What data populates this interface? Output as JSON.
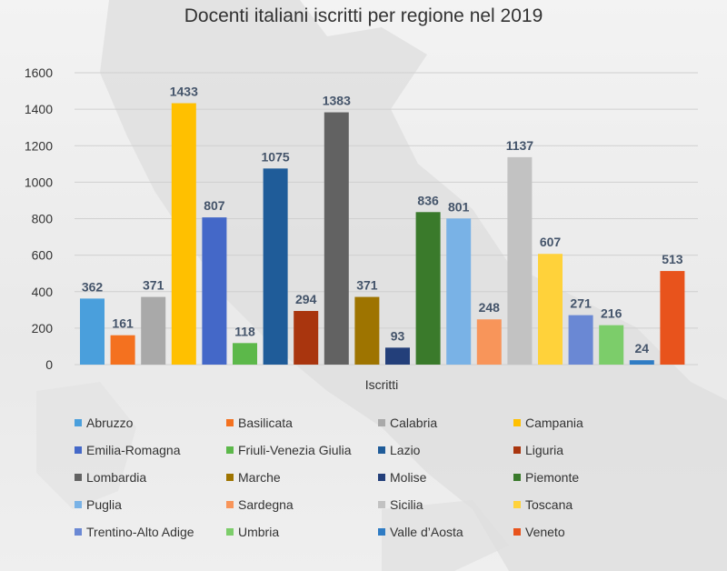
{
  "chart_data": {
    "type": "bar",
    "title": "Docenti italiani iscritti per regione nel 2019",
    "xlabel": "Iscritti",
    "ylabel": "",
    "ylim": [
      0,
      1600
    ],
    "yticks": [
      0,
      200,
      400,
      600,
      800,
      1000,
      1200,
      1400,
      1600
    ],
    "grid": true,
    "legend_position": "bottom",
    "series": [
      {
        "name": "Abruzzo",
        "value": 362,
        "color": "#4a9fdc"
      },
      {
        "name": "Basilicata",
        "value": 161,
        "color": "#f4711f"
      },
      {
        "name": "Calabria",
        "value": 371,
        "color": "#a9a9a9"
      },
      {
        "name": "Campania",
        "value": 1433,
        "color": "#ffc000"
      },
      {
        "name": "Emilia-Romagna",
        "value": 807,
        "color": "#4468c8"
      },
      {
        "name": "Friuli-Venezia Giulia",
        "value": 118,
        "color": "#5cb84a"
      },
      {
        "name": "Lazio",
        "value": 1075,
        "color": "#1f5c99"
      },
      {
        "name": "Liguria",
        "value": 294,
        "color": "#a9350e"
      },
      {
        "name": "Lombardia",
        "value": 1383,
        "color": "#626262"
      },
      {
        "name": "Marche",
        "value": 371,
        "color": "#9e7400"
      },
      {
        "name": "Molise",
        "value": 93,
        "color": "#233f7a"
      },
      {
        "name": "Piemonte",
        "value": 836,
        "color": "#3a7a2b"
      },
      {
        "name": "Puglia",
        "value": 801,
        "color": "#79b2e6"
      },
      {
        "name": "Sardegna",
        "value": 248,
        "color": "#f8955a"
      },
      {
        "name": "Sicilia",
        "value": 1137,
        "color": "#c2c2c2"
      },
      {
        "name": "Toscana",
        "value": 607,
        "color": "#ffd23a"
      },
      {
        "name": "Trentino-Alto Adige",
        "value": 271,
        "color": "#6a88d4"
      },
      {
        "name": "Umbria",
        "value": 216,
        "color": "#7ccd6a"
      },
      {
        "name": "Valle d’Aosta",
        "value": 24,
        "color": "#2f7cc4"
      },
      {
        "name": "Veneto",
        "value": 513,
        "color": "#e8531c"
      }
    ]
  }
}
